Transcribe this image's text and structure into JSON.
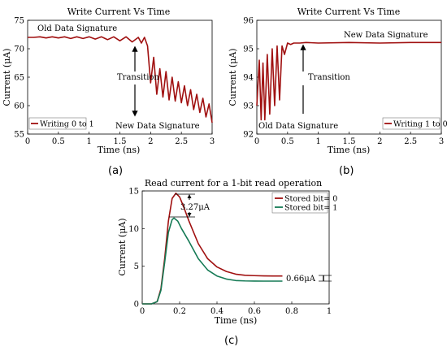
{
  "chart_data": [
    {
      "type": "line",
      "title": "Write Current Vs Time",
      "xlabel": "Time (ns)",
      "ylabel": "Current (μA)",
      "xlim": [
        0,
        3
      ],
      "ylim": [
        55,
        75
      ],
      "xticks": [
        "0",
        "0.5",
        "1",
        "1.5",
        "2",
        "2.5",
        "3"
      ],
      "yticks": [
        "55",
        "60",
        "65",
        "70",
        "75"
      ],
      "panel_label": "(a)",
      "legend": "top-left",
      "series": [
        {
          "name": "Writing 0 to 1",
          "color": "#a01010",
          "x": [
            0,
            0.1,
            0.2,
            0.3,
            0.4,
            0.5,
            0.6,
            0.7,
            0.8,
            0.9,
            1.0,
            1.1,
            1.2,
            1.3,
            1.4,
            1.5,
            1.6,
            1.7,
            1.8,
            1.85,
            1.9,
            1.95,
            2.0,
            2.05,
            2.1,
            2.15,
            2.2,
            2.25,
            2.3,
            2.35,
            2.4,
            2.45,
            2.5,
            2.55,
            2.6,
            2.65,
            2.7,
            2.75,
            2.8,
            2.85,
            2.9,
            2.95,
            3.0
          ],
          "y": [
            72.0,
            72.0,
            72.1,
            71.9,
            72.1,
            71.9,
            72.1,
            71.8,
            72.1,
            71.8,
            72.1,
            71.7,
            72.1,
            71.6,
            72.1,
            71.4,
            72.1,
            71.2,
            72.0,
            71.0,
            72.0,
            70.5,
            64.0,
            68.5,
            62.0,
            66.5,
            61.5,
            66.0,
            61.0,
            65.0,
            60.8,
            64.2,
            60.5,
            63.5,
            60.0,
            62.8,
            59.3,
            62.0,
            58.8,
            61.3,
            58.0,
            60.3,
            57.0
          ]
        }
      ],
      "annotations": [
        "Old Data Signature",
        "Transition",
        "New Data Signature"
      ]
    },
    {
      "type": "line",
      "title": "Write Current Vs Time",
      "xlabel": "Time (ns)",
      "ylabel": "Current (μA)",
      "xlim": [
        0,
        3
      ],
      "ylim": [
        92,
        96
      ],
      "xticks": [
        "0",
        "0.5",
        "1",
        "1.5",
        "2",
        "2.5",
        "3"
      ],
      "yticks": [
        "92",
        "93",
        "94",
        "95",
        "96"
      ],
      "panel_label": "(b)",
      "legend": "bottom-right",
      "series": [
        {
          "name": "Writing 1 to 0",
          "color": "#a01010",
          "x": [
            0,
            0.04,
            0.07,
            0.1,
            0.13,
            0.17,
            0.21,
            0.25,
            0.29,
            0.33,
            0.37,
            0.41,
            0.45,
            0.5,
            0.55,
            0.6,
            0.7,
            0.8,
            1.0,
            1.5,
            2.0,
            2.5,
            3.0
          ],
          "y": [
            93.0,
            94.6,
            92.5,
            94.5,
            92.5,
            94.8,
            92.7,
            95.0,
            93.0,
            95.1,
            93.2,
            95.1,
            94.8,
            95.2,
            95.15,
            95.2,
            95.2,
            95.22,
            95.2,
            95.22,
            95.2,
            95.22,
            95.22
          ]
        }
      ],
      "annotations": [
        "New Data Signature",
        "Transition",
        "Old Data Signature"
      ]
    },
    {
      "type": "line",
      "title": "Read current for a 1-bit read operation",
      "xlabel": "Time (ns)",
      "ylabel": "Current (μA)",
      "xlim": [
        0,
        1
      ],
      "ylim": [
        0,
        15
      ],
      "xticks": [
        "0",
        "0.2",
        "0.4",
        "0.6",
        "0.8",
        "1"
      ],
      "yticks": [
        "0",
        "5",
        "10",
        "15"
      ],
      "panel_label": "(c)",
      "legend": "top-right",
      "series": [
        {
          "name": "Stored bit= 0",
          "color": "#a01010",
          "x": [
            0,
            0.05,
            0.08,
            0.1,
            0.12,
            0.14,
            0.16,
            0.18,
            0.2,
            0.22,
            0.25,
            0.3,
            0.35,
            0.4,
            0.45,
            0.5,
            0.55,
            0.6,
            0.65,
            0.7,
            0.75
          ],
          "y": [
            0,
            0,
            0.3,
            2.0,
            6.0,
            11.0,
            14.0,
            14.7,
            14.2,
            13.0,
            11.0,
            8.0,
            6.0,
            4.9,
            4.3,
            3.95,
            3.8,
            3.75,
            3.72,
            3.7,
            3.7
          ]
        },
        {
          "name": "Stored bit= 1",
          "color": "#157a55",
          "x": [
            0,
            0.05,
            0.08,
            0.1,
            0.12,
            0.14,
            0.16,
            0.17,
            0.19,
            0.21,
            0.25,
            0.3,
            0.35,
            0.4,
            0.45,
            0.5,
            0.55,
            0.6,
            0.65,
            0.7,
            0.75
          ],
          "y": [
            0,
            0,
            0.3,
            1.8,
            5.5,
            9.5,
            11.2,
            11.4,
            11.0,
            10.0,
            8.3,
            6.0,
            4.5,
            3.7,
            3.3,
            3.1,
            3.05,
            3.03,
            3.02,
            3.02,
            3.02
          ]
        }
      ],
      "annotations": [
        "3.27μA",
        "0.66μA"
      ]
    }
  ]
}
